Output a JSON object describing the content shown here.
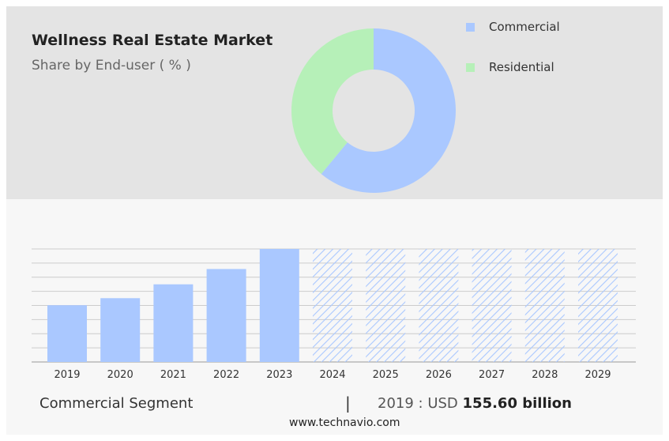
{
  "title": "Wellness Real Estate Market",
  "subtitle": "Share by End-user ( % )",
  "legend": [
    {
      "label": "Commercial",
      "color": "#aac8ff"
    },
    {
      "label": "Residential",
      "color": "#b6f0b8"
    }
  ],
  "footer": {
    "segment": "Commercial Segment",
    "separator": "|",
    "year_prefix": "2019 : USD",
    "value": "155.60 billion"
  },
  "source": "www.technavio.com",
  "chart_data": [
    {
      "type": "pie",
      "donut": true,
      "title": "Share by End-user ( % )",
      "labels": [
        "Commercial",
        "Residential"
      ],
      "values": [
        61,
        39
      ],
      "colors": [
        "#aac8ff",
        "#b6f0b8"
      ]
    },
    {
      "type": "bar",
      "categories": [
        "2019",
        "2020",
        "2021",
        "2022",
        "2023",
        "2024",
        "2025",
        "2026",
        "2027",
        "2028",
        "2029"
      ],
      "values": [
        155.6,
        175,
        213,
        255,
        310,
        310,
        310,
        310,
        310,
        310,
        310
      ],
      "forecast_from": "2024",
      "ylim": [
        0,
        310
      ],
      "grid": true,
      "color": "#aac8ff"
    }
  ]
}
